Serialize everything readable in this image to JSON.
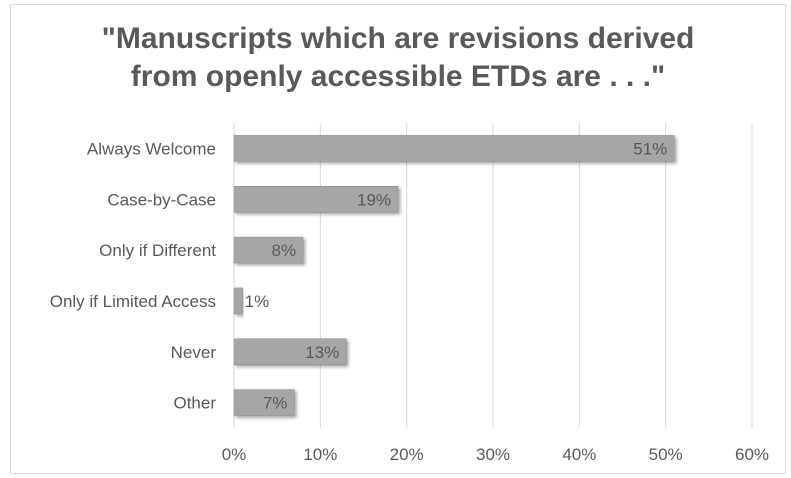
{
  "chart_data": {
    "type": "bar",
    "orientation": "horizontal",
    "title_lines": [
      "\"Manuscripts which are revisions derived",
      "from openly accessible ETDs are . . .\""
    ],
    "categories": [
      "Always Welcome",
      "Case-by-Case",
      "Only if Different",
      "Only if Limited Access",
      "Never",
      "Other"
    ],
    "values": [
      51,
      19,
      8,
      1,
      13,
      7
    ],
    "value_labels": [
      "51%",
      "19%",
      "8%",
      "1%",
      "13%",
      "7%"
    ],
    "xlim": [
      0,
      60
    ],
    "ticks": [
      0,
      10,
      20,
      30,
      40,
      50,
      60
    ],
    "tick_labels": [
      "0%",
      "10%",
      "20%",
      "30%",
      "40%",
      "50%",
      "60%"
    ],
    "grid": true,
    "legend": "none",
    "colors": {
      "bar": "#a6a6a6",
      "bar_edge": "#8c8c8c",
      "grid": "#d9d9d9",
      "text": "#595959"
    }
  }
}
